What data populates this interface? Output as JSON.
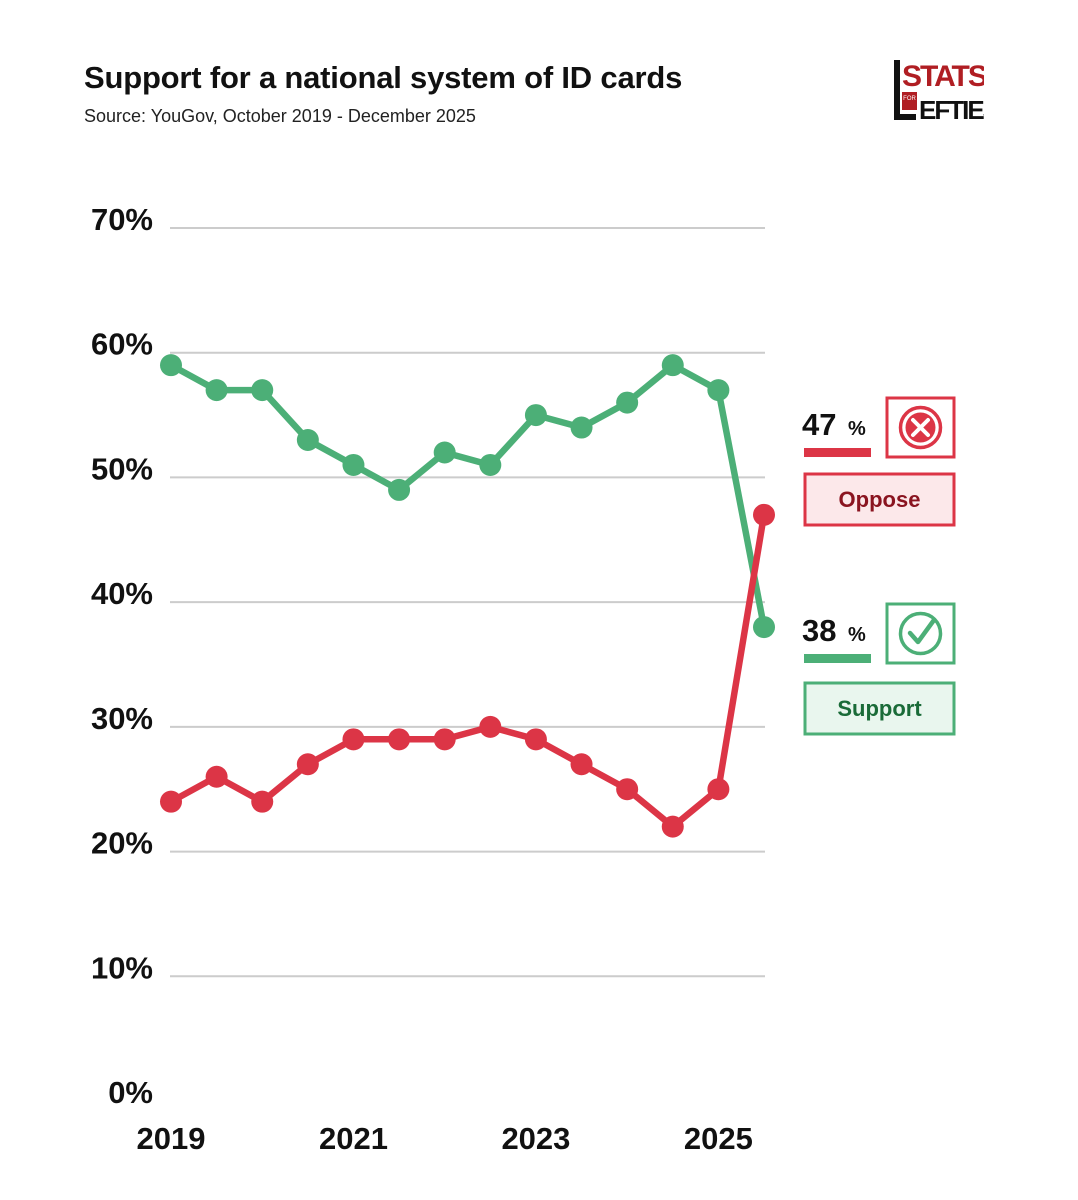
{
  "header": {
    "title": "Support for a national system of ID cards",
    "subtitle": "Source: YouGov, October 2019 - December 2025"
  },
  "logo": {
    "text_top": "STATS",
    "text_for": "FOR",
    "text_bottom": "EFTIES",
    "color": "#b01e23"
  },
  "colors": {
    "support": "#4caf77",
    "oppose": "#dc3546",
    "grid": "#cccccc"
  },
  "chart_data": {
    "type": "line",
    "title": "Support for a national system of ID cards",
    "subtitle": "Source: YouGov, October 2019 - December 2025",
    "xlabel": "",
    "ylabel": "",
    "ylim": [
      0,
      70
    ],
    "y_ticks": [
      0,
      10,
      20,
      30,
      40,
      50,
      60,
      70
    ],
    "y_tick_labels": [
      "0%",
      "10%",
      "20%",
      "30%",
      "40%",
      "50%",
      "60%",
      "70%"
    ],
    "x_tick_labels": [
      {
        "label": "2019",
        "index": 0
      },
      {
        "label": "2021",
        "index": 4
      },
      {
        "label": "2023",
        "index": 8
      },
      {
        "label": "2025",
        "index": 12
      }
    ],
    "grid": true,
    "series": [
      {
        "name": "Support",
        "key": "support",
        "values": [
          59,
          57,
          57,
          53,
          51,
          49,
          52,
          51,
          55,
          54,
          56,
          59,
          57,
          38
        ]
      },
      {
        "name": "Oppose",
        "key": "oppose",
        "values": [
          24,
          26,
          24,
          27,
          29,
          29,
          29,
          30,
          29,
          27,
          25,
          22,
          25,
          47
        ]
      }
    ],
    "legend": {
      "placement": "right",
      "oppose": {
        "value": "47",
        "unit": "%",
        "label": "Oppose"
      },
      "support": {
        "value": "38",
        "unit": "%",
        "label": "Support"
      }
    }
  }
}
